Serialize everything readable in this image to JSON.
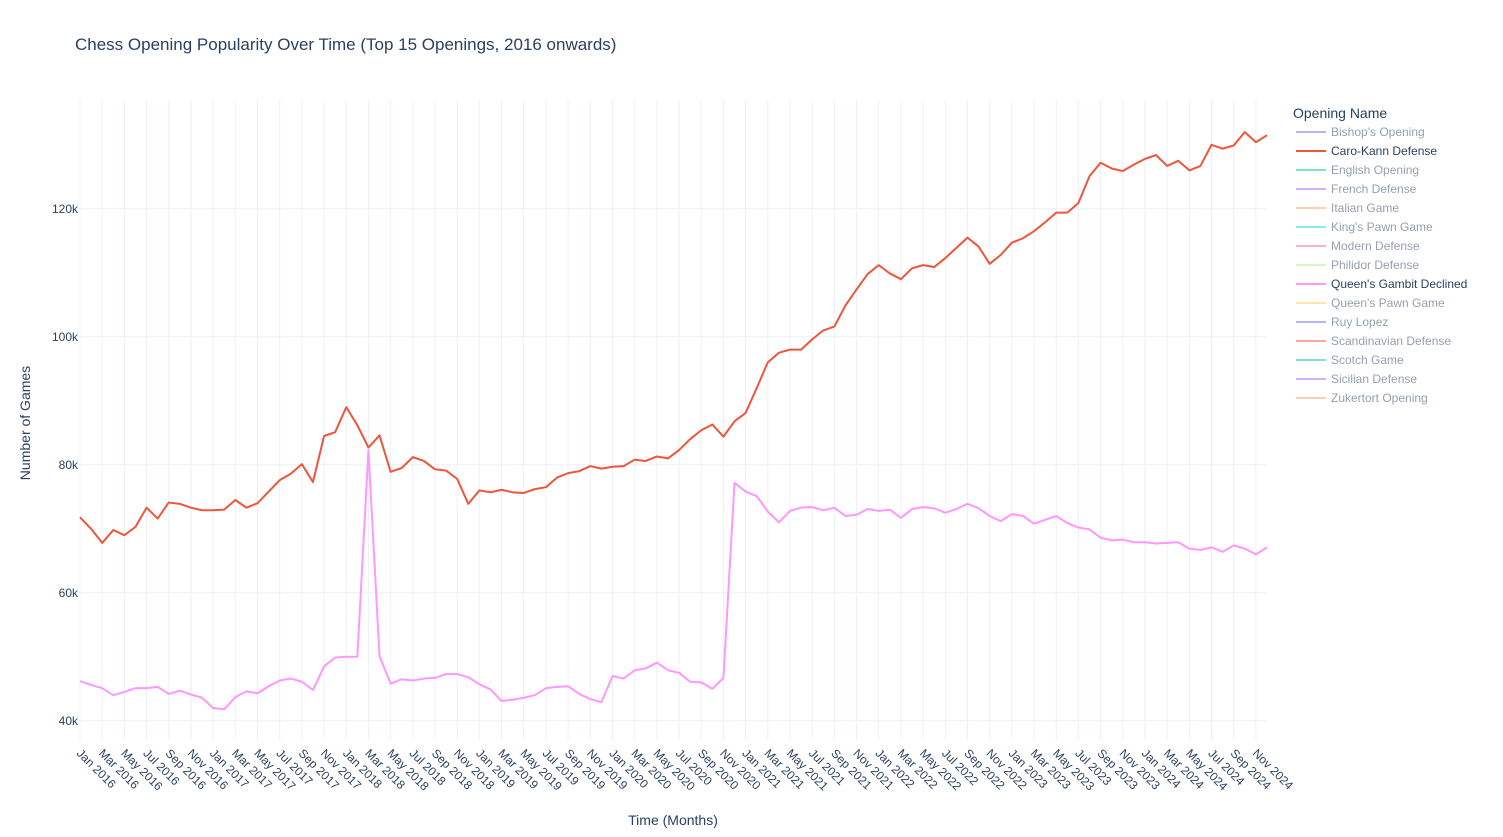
{
  "chart_data": {
    "type": "line",
    "title": "Chess Opening Popularity Over Time (Top 15 Openings, 2016 onwards)",
    "xlabel": "Time (Months)",
    "ylabel": "Number of Games",
    "ylim": [
      37000,
      137000
    ],
    "yticks": [
      40000,
      60000,
      80000,
      100000,
      120000
    ],
    "ytick_labels": [
      "40k",
      "60k",
      "80k",
      "100k",
      "120k"
    ],
    "x_start": "Jan 2016",
    "x_end": "Dec 2024",
    "xtick_labels": [
      "Jan 2016",
      "Mar 2016",
      "May 2016",
      "Jul 2016",
      "Sep 2016",
      "Nov 2016",
      "Jan 2017",
      "Mar 2017",
      "May 2017",
      "Jul 2017",
      "Sep 2017",
      "Nov 2017",
      "Jan 2018",
      "Mar 2018",
      "May 2018",
      "Jul 2018",
      "Sep 2018",
      "Nov 2018",
      "Jan 2019",
      "Mar 2019",
      "May 2019",
      "Jul 2019",
      "Sep 2019",
      "Nov 2019",
      "Jan 2020",
      "Mar 2020",
      "May 2020",
      "Jul 2020",
      "Sep 2020",
      "Nov 2020",
      "Jan 2021",
      "Mar 2021",
      "May 2021",
      "Jul 2021",
      "Sep 2021",
      "Nov 2021",
      "Jan 2022",
      "Mar 2022",
      "May 2022",
      "Jul 2022",
      "Sep 2022",
      "Nov 2022",
      "Jan 2023",
      "Mar 2023",
      "May 2023",
      "Jul 2023",
      "Sep 2023",
      "Nov 2023",
      "Jan 2024",
      "Mar 2024",
      "May 2024",
      "Jul 2024",
      "Sep 2024",
      "Nov 2024"
    ],
    "grid": true,
    "legend": {
      "title": "Opening Name",
      "placement": "right"
    },
    "series": [
      {
        "name": "Bishop's Opening",
        "color": "#636efa",
        "visible": false,
        "values": []
      },
      {
        "name": "Caro-Kann Defense",
        "color": "#EF553B",
        "visible": true,
        "values": [
          71800,
          70000,
          67800,
          69800,
          69000,
          70300,
          73300,
          71600,
          74100,
          73900,
          73300,
          72900,
          72900,
          73000,
          74500,
          73300,
          74000,
          75800,
          77600,
          78600,
          80100,
          77300,
          84500,
          85100,
          89000,
          86200,
          82700,
          84600,
          78900,
          79500,
          81200,
          80600,
          79300,
          79100,
          77800,
          73900,
          76000,
          75700,
          76100,
          75700,
          75600,
          76200,
          76500,
          78000,
          78700,
          79000,
          79800,
          79400,
          79700,
          79800,
          80800,
          80600,
          81300,
          81000,
          82300,
          84000,
          85400,
          86300,
          84400,
          86800,
          88100,
          92000,
          96000,
          97500,
          98000,
          98000,
          99600,
          101000,
          101600,
          104900,
          107400,
          109800,
          111200,
          109900,
          109000,
          110700,
          111200,
          110900,
          112300,
          113900,
          115500,
          114100,
          111400,
          112800,
          114700,
          115400,
          116500,
          117900,
          119400,
          119400,
          120900,
          125100,
          127200,
          126300,
          125900,
          126900,
          127800,
          128400,
          126700,
          127500,
          126000,
          126700,
          130000,
          129400,
          129900,
          132000,
          130400,
          131500
        ]
      },
      {
        "name": "English Opening",
        "color": "#00cc96",
        "visible": false,
        "values": []
      },
      {
        "name": "French Defense",
        "color": "#ab63fa",
        "visible": false,
        "values": []
      },
      {
        "name": "Italian Game",
        "color": "#FFA15A",
        "visible": false,
        "values": []
      },
      {
        "name": "King's Pawn Game",
        "color": "#19d3f3",
        "visible": false,
        "values": []
      },
      {
        "name": "Modern Defense",
        "color": "#FF6692",
        "visible": false,
        "values": []
      },
      {
        "name": "Philidor Defense",
        "color": "#B6E880",
        "visible": false,
        "values": []
      },
      {
        "name": "Queen's Gambit Declined",
        "color": "#FF97FF",
        "visible": true,
        "values": [
          46200,
          45600,
          45100,
          44000,
          44500,
          45100,
          45100,
          45300,
          44200,
          44700,
          44100,
          43600,
          42000,
          41800,
          43700,
          44600,
          44300,
          45400,
          46300,
          46600,
          46100,
          44800,
          48500,
          49900,
          50000,
          50000,
          82300,
          50100,
          45800,
          46500,
          46300,
          46600,
          46700,
          47300,
          47300,
          46800,
          45700,
          44900,
          43100,
          43300,
          43600,
          44000,
          45100,
          45300,
          45400,
          44200,
          43400,
          42900,
          47000,
          46600,
          47900,
          48200,
          49100,
          47900,
          47500,
          46100,
          46000,
          45000,
          46700,
          77200,
          75800,
          75100,
          72700,
          71000,
          72800,
          73300,
          73400,
          72900,
          73300,
          72000,
          72200,
          73100,
          72800,
          73000,
          71700,
          73100,
          73400,
          73200,
          72500,
          73100,
          73900,
          73200,
          72000,
          71200,
          72300,
          72000,
          70800,
          71400,
          72000,
          70900,
          70200,
          69900,
          68600,
          68200,
          68300,
          67900,
          67900,
          67700,
          67800,
          67900,
          66900,
          66700,
          67100,
          66400,
          67400,
          66900,
          66000,
          67100
        ]
      },
      {
        "name": "Queen's Pawn Game",
        "color": "#FECB52",
        "visible": false,
        "values": []
      },
      {
        "name": "Ruy Lopez",
        "color": "#636efa",
        "visible": false,
        "values": []
      },
      {
        "name": "Scandinavian Defense",
        "color": "#EF553B",
        "visible": false,
        "values": []
      },
      {
        "name": "Scotch Game",
        "color": "#00cc96",
        "visible": false,
        "values": []
      },
      {
        "name": "Sicilian Defense",
        "color": "#ab63fa",
        "visible": false,
        "values": []
      },
      {
        "name": "Zukertort Opening",
        "color": "#FFA15A",
        "visible": false,
        "values": []
      }
    ]
  }
}
